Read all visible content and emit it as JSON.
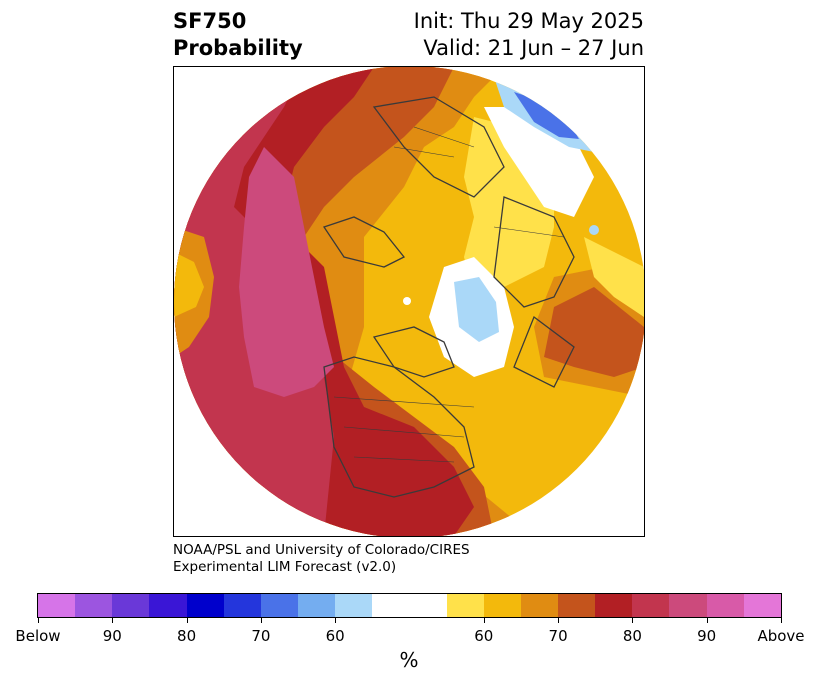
{
  "title": {
    "line1": "SF750",
    "line2": "Probability",
    "init": "Init: Thu 29 May 2025",
    "valid": "Valid: 21 Jun – 27 Jun"
  },
  "credit": {
    "line1": "NOAA/PSL and University of Colorado/CIRES",
    "line2": "Experimental LIM Forecast (v2.0)"
  },
  "colorbar": {
    "colors": [
      "#d674e8",
      "#9c55e0",
      "#6a38d8",
      "#3a16d6",
      "#0000cc",
      "#2436dc",
      "#4a72e8",
      "#74adf0",
      "#aad8f8",
      "#ffffff",
      "#ffe14a",
      "#f3b90c",
      "#e08c12",
      "#c4541c",
      "#b21f24",
      "#c2354e",
      "#cc4a7c",
      "#d85aa8",
      "#e476d8"
    ],
    "widths": [
      1,
      1,
      1,
      1,
      1,
      1,
      1,
      1,
      1,
      2,
      1,
      1,
      1,
      1,
      1,
      1,
      1,
      1,
      1
    ],
    "labels": [
      "Below",
      "90",
      "80",
      "70",
      "60",
      "60",
      "70",
      "80",
      "90",
      "Above"
    ],
    "units": "%"
  },
  "map": {
    "colors": {
      "magenta": "#cc4a7c",
      "crimson": "#c2354e",
      "darkred": "#b21f24",
      "rust": "#c4541c",
      "orange": "#e08c12",
      "gold": "#f3b90c",
      "yellow": "#ffe14a",
      "lightblue": "#aad8f8",
      "blue": "#4a72e8",
      "coast": "#3a3a3a"
    }
  }
}
